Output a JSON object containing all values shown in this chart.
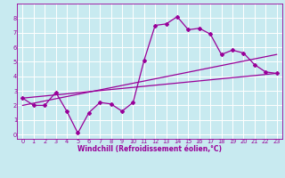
{
  "background_color": "#c8eaf0",
  "grid_color": "#ffffff",
  "line_color": "#990099",
  "xlabel": "Windchill (Refroidissement éolien,°C)",
  "xlim": [
    -0.5,
    23.5
  ],
  "ylim": [
    -0.3,
    9.0
  ],
  "yticks": [
    0,
    1,
    2,
    3,
    4,
    5,
    6,
    7,
    8
  ],
  "xticks": [
    0,
    1,
    2,
    3,
    4,
    5,
    6,
    7,
    8,
    9,
    10,
    11,
    12,
    13,
    14,
    15,
    16,
    17,
    18,
    19,
    20,
    21,
    22,
    23
  ],
  "line1_x": [
    0,
    1,
    2,
    3,
    4,
    5,
    6,
    7,
    8,
    9,
    10,
    11,
    12,
    13,
    14,
    15,
    16,
    17,
    18,
    19,
    20,
    21,
    22,
    23
  ],
  "line1_y": [
    2.5,
    2.0,
    2.0,
    2.9,
    1.6,
    0.1,
    1.5,
    2.2,
    2.1,
    1.6,
    2.2,
    5.1,
    7.5,
    7.6,
    8.1,
    7.2,
    7.3,
    6.9,
    5.5,
    5.8,
    5.6,
    4.8,
    4.3,
    4.2
  ],
  "line2_x": [
    0,
    23
  ],
  "line2_y": [
    2.5,
    4.2
  ],
  "line3_x": [
    0,
    23
  ],
  "line3_y": [
    2.0,
    5.5
  ],
  "marker_size": 2.0,
  "line_width": 0.9,
  "tick_labelsize": 4.8,
  "xlabel_fontsize": 5.5
}
